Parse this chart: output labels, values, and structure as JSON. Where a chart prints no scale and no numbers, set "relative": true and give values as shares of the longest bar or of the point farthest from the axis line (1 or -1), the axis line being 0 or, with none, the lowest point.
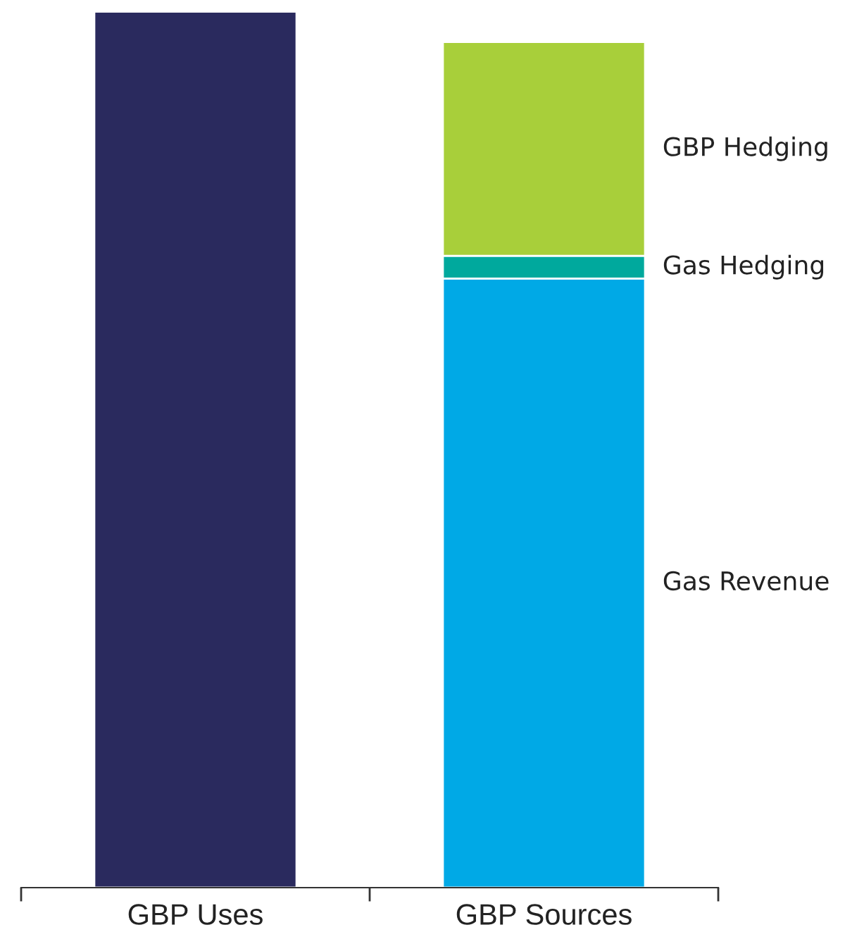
{
  "chart_data": {
    "type": "bar",
    "stacked": true,
    "relative": true,
    "categories": [
      "GBP Uses",
      "GBP Sources"
    ],
    "series": [
      {
        "color": "#2a2a5e",
        "values": [
          1.0,
          null
        ]
      },
      {
        "name": "Gas Revenue",
        "color": "#00a9e6",
        "values": [
          null,
          0.695
        ]
      },
      {
        "name": "Gas Hedging",
        "color": "#00a99d",
        "values": [
          null,
          0.026
        ]
      },
      {
        "name": "GBP Hedging",
        "color": "#a8cf3a",
        "values": [
          null,
          0.244
        ]
      }
    ],
    "legend": false,
    "grid": false
  }
}
